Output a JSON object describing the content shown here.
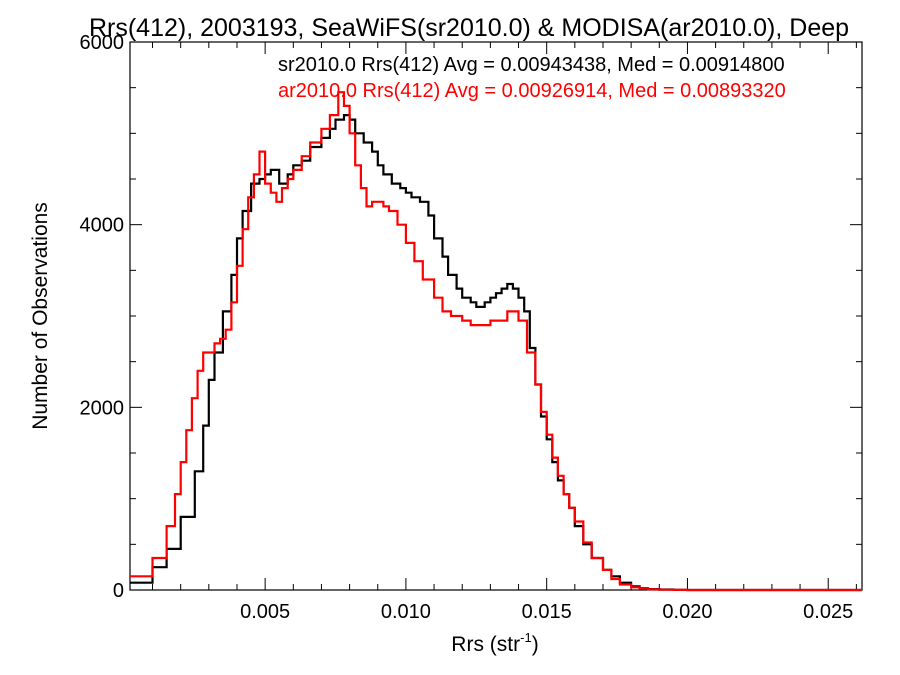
{
  "chart_data": {
    "type": "step-histogram",
    "title": "Rrs(412), 2003193, SeaWiFS(sr2010.0) & MODISA(ar2010.0), Deep",
    "xlabel": "Rrs (str",
    "xlabel_sup": "-1",
    "xlabel_close": ")",
    "ylabel": "Number of Observations",
    "xlim": [
      0.0002,
      0.0262
    ],
    "ylim": [
      0,
      6000
    ],
    "x_ticks": [
      0.005,
      0.01,
      0.015,
      0.02,
      0.025
    ],
    "x_tick_labels": [
      "0.005",
      "0.010",
      "0.015",
      "0.020",
      "0.025"
    ],
    "y_ticks": [
      0,
      2000,
      4000,
      6000
    ],
    "y_tick_labels": [
      "0",
      "2000",
      "4000",
      "6000"
    ],
    "grid": false,
    "legend_position": "top-right",
    "series": [
      {
        "name": "sr2010.0 Rrs(412) Avg = 0.00943438, Med = 0.00914800",
        "color": "#000000",
        "x": [
          0.0002,
          0.001,
          0.0015,
          0.002,
          0.0025,
          0.0028,
          0.003,
          0.0032,
          0.0035,
          0.0038,
          0.004,
          0.0042,
          0.0045,
          0.0048,
          0.005,
          0.0052,
          0.0055,
          0.0058,
          0.006,
          0.0063,
          0.0066,
          0.007,
          0.0073,
          0.0075,
          0.0078,
          0.008,
          0.0082,
          0.0085,
          0.0088,
          0.009,
          0.0092,
          0.0095,
          0.0098,
          0.01,
          0.0102,
          0.0105,
          0.0108,
          0.011,
          0.0113,
          0.0115,
          0.0118,
          0.012,
          0.0123,
          0.0125,
          0.0128,
          0.013,
          0.0132,
          0.0134,
          0.0136,
          0.0138,
          0.014,
          0.0142,
          0.0144,
          0.0146,
          0.0148,
          0.015,
          0.0152,
          0.0154,
          0.0156,
          0.0158,
          0.016,
          0.0163,
          0.0166,
          0.017,
          0.0173,
          0.0176,
          0.018,
          0.0183,
          0.0186,
          0.019,
          0.0195,
          0.02,
          0.021,
          0.022,
          0.024,
          0.0262
        ],
        "y": [
          80,
          250,
          450,
          800,
          1300,
          1800,
          2300,
          2600,
          3050,
          3450,
          3850,
          4150,
          4450,
          4500,
          4550,
          4600,
          4450,
          4550,
          4650,
          4700,
          4850,
          4950,
          5050,
          5150,
          5200,
          5150,
          5000,
          4900,
          4800,
          4650,
          4550,
          4450,
          4400,
          4350,
          4300,
          4250,
          4100,
          3850,
          3650,
          3450,
          3300,
          3200,
          3150,
          3100,
          3150,
          3200,
          3250,
          3300,
          3350,
          3300,
          3200,
          3050,
          2650,
          2250,
          1900,
          1650,
          1400,
          1200,
          1050,
          900,
          700,
          500,
          350,
          220,
          150,
          80,
          40,
          20,
          10,
          5,
          2,
          0,
          0,
          0,
          0
        ]
      },
      {
        "name": "ar2010.0 Rrs(412) Avg = 0.00926914, Med = 0.00893320",
        "color": "#ff0000",
        "x": [
          0.0002,
          0.001,
          0.0015,
          0.0018,
          0.002,
          0.0022,
          0.0024,
          0.0026,
          0.0028,
          0.003,
          0.0032,
          0.0034,
          0.0036,
          0.0038,
          0.004,
          0.0042,
          0.0044,
          0.0046,
          0.0048,
          0.005,
          0.0052,
          0.0054,
          0.0056,
          0.0058,
          0.006,
          0.0063,
          0.0066,
          0.007,
          0.0073,
          0.0076,
          0.0078,
          0.008,
          0.0082,
          0.0084,
          0.0086,
          0.0088,
          0.009,
          0.0092,
          0.0094,
          0.0097,
          0.01,
          0.0103,
          0.0106,
          0.011,
          0.0113,
          0.0116,
          0.012,
          0.0123,
          0.0126,
          0.013,
          0.0133,
          0.0136,
          0.014,
          0.0143,
          0.0146,
          0.0148,
          0.015,
          0.0152,
          0.0154,
          0.0156,
          0.0158,
          0.016,
          0.0163,
          0.0166,
          0.017,
          0.0173,
          0.0176,
          0.018,
          0.0183,
          0.0186,
          0.019,
          0.0195,
          0.02,
          0.021,
          0.022,
          0.024,
          0.0262
        ],
        "y": [
          150,
          350,
          700,
          1050,
          1400,
          1750,
          2100,
          2400,
          2600,
          2600,
          2700,
          2750,
          2850,
          3150,
          3550,
          3950,
          4300,
          4550,
          4800,
          4450,
          4350,
          4250,
          4400,
          4500,
          4600,
          4750,
          4900,
          5050,
          5200,
          5450,
          5300,
          5000,
          4650,
          4400,
          4200,
          4250,
          4250,
          4200,
          4150,
          4000,
          3800,
          3600,
          3400,
          3200,
          3050,
          3000,
          2950,
          2900,
          2900,
          2950,
          2950,
          3050,
          2950,
          2600,
          2250,
          1950,
          1700,
          1450,
          1250,
          1050,
          900,
          750,
          520,
          350,
          220,
          120,
          60,
          30,
          15,
          8,
          3,
          1,
          0,
          0,
          0,
          0
        ]
      }
    ]
  }
}
